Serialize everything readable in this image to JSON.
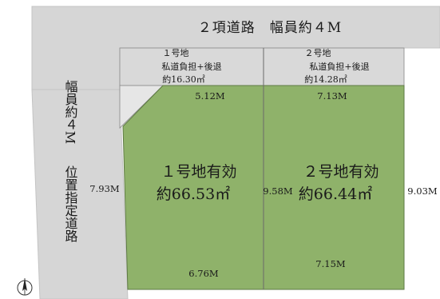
{
  "colors": {
    "road": "#d6d6d6",
    "lot": "#8fb26a",
    "lot_stroke": "#5e7a44",
    "burden_area": "#d9d9d9",
    "line": "#555555"
  },
  "roads": {
    "top": {
      "label": "２項道路　幅員約４M"
    },
    "left": {
      "label_upper": "幅員約４M",
      "label_lower": "位置指定道路"
    }
  },
  "lots": [
    {
      "burden_label": "１号地",
      "burden_desc": "私道負担+後退",
      "burden_area": "約16.30㎡",
      "effective_label": "１号地有効",
      "effective_area": "約66.53㎡",
      "dim_top": "5.12M",
      "dim_bottom": "6.76M",
      "dim_left": "7.93M"
    },
    {
      "burden_label": "２号地",
      "burden_desc": "私道負担+後退",
      "burden_area": "約14.28㎡",
      "effective_label": "２号地有効",
      "effective_area": "約66.44㎡",
      "dim_top": "7.13M",
      "dim_bottom": "7.15M",
      "dim_right": "9.03M"
    }
  ],
  "shared_dim": "9.58M",
  "compass": {
    "icon": "north-arrow-icon"
  }
}
